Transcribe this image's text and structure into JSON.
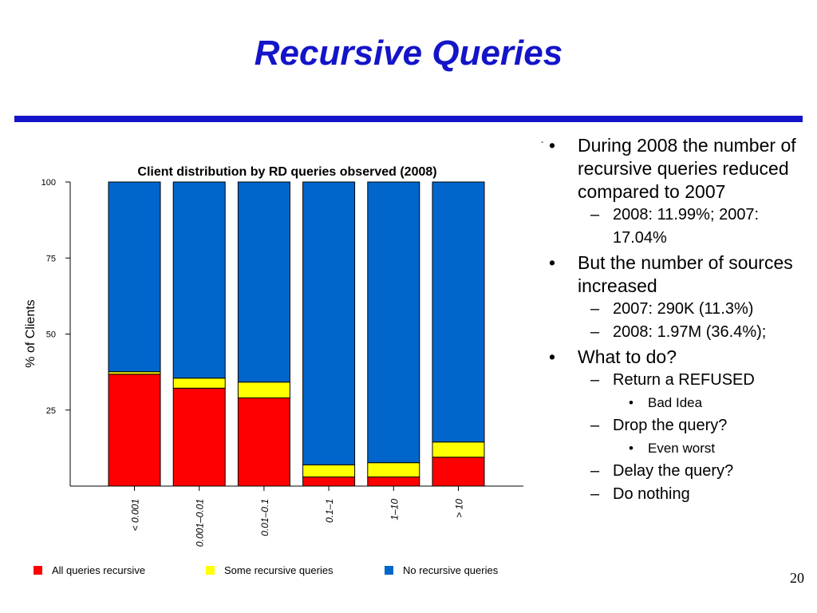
{
  "slide": {
    "title": "Recursive Queries",
    "page_number": "20"
  },
  "colors": {
    "title_blue": "#1414c8",
    "rule_blue": "#1414c8",
    "all_recursive": "#ff0000",
    "some_recursive": "#ffff00",
    "no_recursive": "#0066cc"
  },
  "chart_data": {
    "type": "bar",
    "stacked": true,
    "title": "Client distribution by RD queries observed (2008)",
    "xlabel": "",
    "ylabel": "% of Clients",
    "ylim": [
      0,
      100
    ],
    "yticks": [
      25,
      50,
      75,
      100
    ],
    "categories": [
      "< 0.001",
      "0.001–0.01",
      "0.01–0.1",
      "0.1–1",
      "1–10",
      "> 10"
    ],
    "series": [
      {
        "name": "All queries recursive",
        "color": "#ff0000",
        "values": [
          36.8,
          32.2,
          29.0,
          3.0,
          3.0,
          9.5
        ]
      },
      {
        "name": "Some recursive queries",
        "color": "#ffff00",
        "values": [
          0.8,
          3.3,
          5.2,
          4.0,
          4.7,
          5.0
        ]
      },
      {
        "name": "No recursive queries",
        "color": "#0066cc",
        "values": [
          62.4,
          64.5,
          65.8,
          93.0,
          92.3,
          85.5
        ]
      }
    ],
    "legend_position": "bottom"
  },
  "bullets": [
    {
      "level": 1,
      "marker": "•",
      "text": "During 2008 the number of recursive queries reduced compared to 2007"
    },
    {
      "level": 2,
      "marker": "–",
      "text": "2008: 11.99%; 2007: 17.04%"
    },
    {
      "level": 1,
      "marker": "•",
      "text": "But the number of sources increased"
    },
    {
      "level": 2,
      "marker": "–",
      "text": "2007: 290K (11.3%)"
    },
    {
      "level": 2,
      "marker": "–",
      "text": "2008: 1.97M (36.4%);"
    },
    {
      "level": 1,
      "marker": "•",
      "text": "What to do?"
    },
    {
      "level": 2,
      "marker": "–",
      "text": "Return a REFUSED"
    },
    {
      "level": 3,
      "marker": "•",
      "text": "Bad Idea"
    },
    {
      "level": 2,
      "marker": "–",
      "text": "Drop the query?"
    },
    {
      "level": 3,
      "marker": "•",
      "text": "Even worst"
    },
    {
      "level": 2,
      "marker": "–",
      "text": "Delay the query?"
    },
    {
      "level": 2,
      "marker": "–",
      "text": "Do nothing"
    }
  ]
}
